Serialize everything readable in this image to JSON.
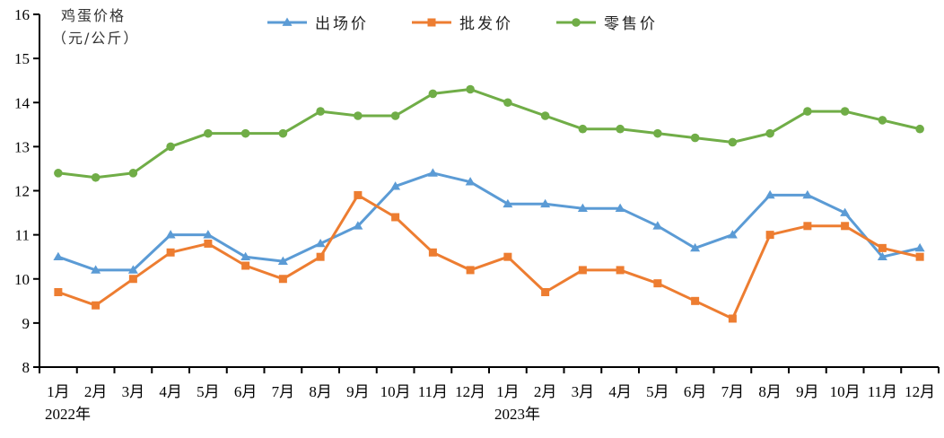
{
  "chart_data": {
    "type": "line",
    "title": "",
    "ylabel": "鸡蛋价格（元/公斤）",
    "ylabel_lines": [
      "鸡蛋价格",
      "（元/公斤）"
    ],
    "xlabel": "",
    "ylim": [
      8,
      16
    ],
    "yticks": [
      8,
      9,
      10,
      11,
      12,
      13,
      14,
      15,
      16
    ],
    "grid": false,
    "legend_position": "top",
    "categories": [
      "1月",
      "2月",
      "3月",
      "4月",
      "5月",
      "6月",
      "7月",
      "8月",
      "9月",
      "10月",
      "11月",
      "12月",
      "1月",
      "2月",
      "3月",
      "4月",
      "5月",
      "6月",
      "7月",
      "8月",
      "9月",
      "10月",
      "11月",
      "12月"
    ],
    "year_labels": [
      {
        "label": "2022年",
        "at_index": 0
      },
      {
        "label": "2023年",
        "at_index": 12
      }
    ],
    "series": [
      {
        "name": "出场价",
        "color": "#5b9bd5",
        "marker": "triangle",
        "values": [
          10.5,
          10.2,
          10.2,
          11.0,
          11.0,
          10.5,
          10.4,
          10.8,
          11.2,
          12.1,
          12.4,
          12.2,
          11.7,
          11.7,
          11.6,
          11.6,
          11.2,
          10.7,
          11.0,
          11.9,
          11.9,
          11.5,
          10.5,
          10.7
        ]
      },
      {
        "name": "批发价",
        "color": "#ed7d31",
        "marker": "square",
        "values": [
          9.7,
          9.4,
          10.0,
          10.6,
          10.8,
          10.3,
          10.0,
          10.5,
          11.9,
          11.4,
          10.6,
          10.2,
          10.5,
          9.7,
          10.2,
          10.2,
          9.9,
          9.5,
          9.1,
          11.0,
          11.2,
          11.2,
          10.7,
          10.5
        ]
      },
      {
        "name": "零售价",
        "color": "#70ad47",
        "marker": "circle",
        "values": [
          12.4,
          12.3,
          12.4,
          13.0,
          13.3,
          13.3,
          13.3,
          13.8,
          13.7,
          13.7,
          14.2,
          14.3,
          14.0,
          13.7,
          13.4,
          13.4,
          13.3,
          13.2,
          13.1,
          13.3,
          13.8,
          13.8,
          13.6,
          13.4
        ]
      }
    ]
  }
}
